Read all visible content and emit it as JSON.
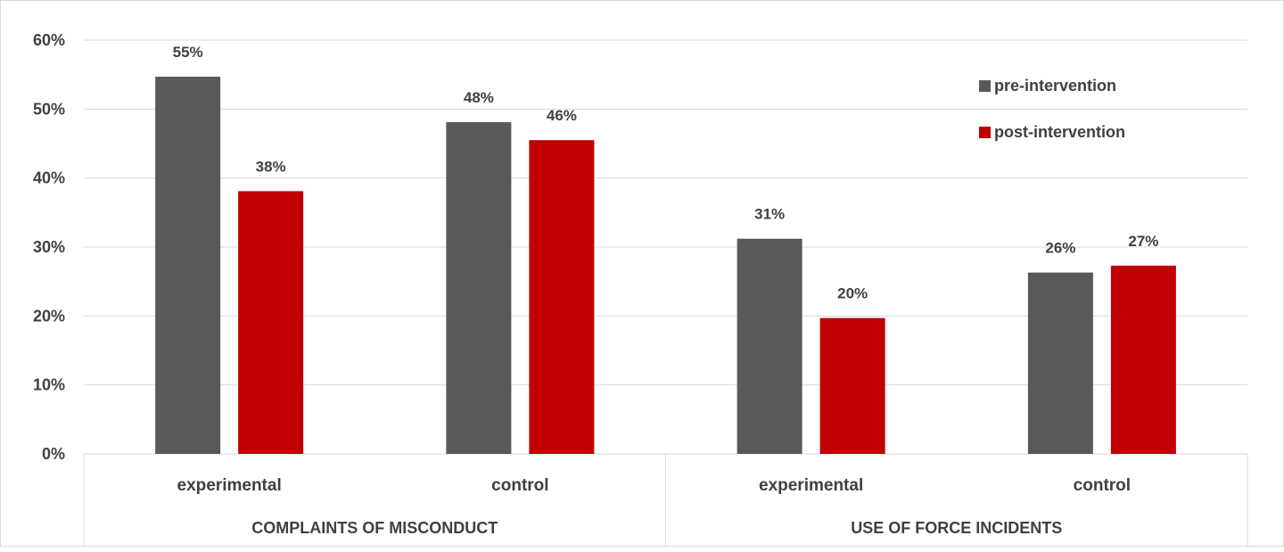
{
  "chart_data": {
    "type": "bar",
    "groups": [
      {
        "name": "COMPLAINTS OF MISCONDUCT",
        "categories": [
          "experimental",
          "control"
        ]
      },
      {
        "name": "USE OF FORCE INCIDENTS",
        "categories": [
          "experimental",
          "control"
        ]
      }
    ],
    "categories": [
      "experimental",
      "control",
      "experimental",
      "control"
    ],
    "series": [
      {
        "name": "pre-intervention",
        "values": [
          54.7,
          48.1,
          31.2,
          26.3
        ],
        "labels": [
          "55%",
          "48%",
          "31%",
          "26%"
        ],
        "color": "#595959"
      },
      {
        "name": "post-intervention",
        "values": [
          38.1,
          45.5,
          19.7,
          27.3
        ],
        "labels": [
          "38%",
          "46%",
          "20%",
          "27%"
        ],
        "color": "#c00000"
      }
    ],
    "yticks": [
      "0%",
      "10%",
      "20%",
      "30%",
      "40%",
      "50%",
      "60%"
    ],
    "ylim": [
      0,
      60
    ],
    "grid": true,
    "legend": "top-right",
    "title": "",
    "xlabel": "",
    "ylabel": ""
  }
}
